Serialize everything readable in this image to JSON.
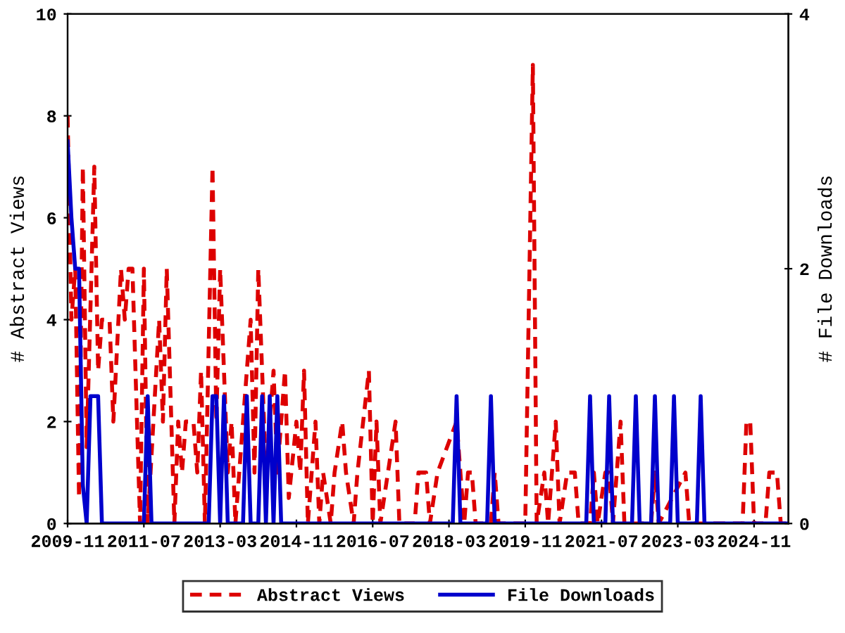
{
  "chart_data": {
    "type": "line",
    "ylabel": "# Abstract Views",
    "y2label": "# File Downloads",
    "xlim": [
      "2009-11",
      "2025-08"
    ],
    "xticks": [
      "2009-11",
      "2011-07",
      "2013-03",
      "2014-11",
      "2016-07",
      "2018-03",
      "2019-11",
      "2021-07",
      "2023-03",
      "2024-11"
    ],
    "ylim": [
      0,
      10
    ],
    "yticks": [
      0,
      2,
      4,
      6,
      8,
      10
    ],
    "y2lim": [
      0,
      4
    ],
    "y2ticks": [
      0,
      2,
      4
    ],
    "grid": false,
    "legend": "bottom",
    "marker": "none",
    "series": [
      {
        "name": "Abstract Views",
        "color": "#dd0000",
        "line_style": "dashed",
        "axis": "y",
        "x": [
          "2009-11",
          "2009-12",
          "2010-01",
          "2010-02",
          "2010-03",
          "2010-04",
          "2010-06",
          "2010-07",
          "2010-08",
          "2010-10",
          "2010-11",
          "2011-01",
          "2011-02",
          "2011-03",
          "2011-04",
          "2011-06",
          "2011-07",
          "2011-08",
          "2011-11",
          "2011-12",
          "2012-01",
          "2012-03",
          "2012-04",
          "2012-05",
          "2012-06",
          "2012-08",
          "2012-09",
          "2012-10",
          "2012-11",
          "2013-01",
          "2013-02",
          "2013-03",
          "2013-05",
          "2013-06",
          "2013-07",
          "2013-09",
          "2013-11",
          "2013-12",
          "2014-01",
          "2014-03",
          "2014-05",
          "2014-06",
          "2014-08",
          "2014-09",
          "2014-11",
          "2014-12",
          "2015-01",
          "2015-02",
          "2015-04",
          "2015-05",
          "2015-06",
          "2015-08",
          "2015-09",
          "2015-11",
          "2015-12",
          "2016-02",
          "2016-03",
          "2016-06",
          "2016-07",
          "2016-08",
          "2016-09",
          "2016-11",
          "2017-01",
          "2017-02",
          "2017-06",
          "2017-07",
          "2017-09",
          "2017-10",
          "2017-12",
          "2018-05",
          "2018-07",
          "2018-08",
          "2018-09",
          "2018-10",
          "2019-02",
          "2019-03",
          "2019-04",
          "2019-11",
          "2020-01",
          "2020-02",
          "2020-04",
          "2020-05",
          "2020-07",
          "2020-08",
          "2020-10",
          "2020-12",
          "2021-01",
          "2021-04",
          "2021-05",
          "2021-06",
          "2021-08",
          "2021-09",
          "2021-10",
          "2021-12",
          "2022-01",
          "2022-08",
          "2022-09",
          "2022-10",
          "2023-05",
          "2023-06",
          "2024-08",
          "2024-09",
          "2024-10",
          "2024-11",
          "2025-02",
          "2025-03",
          "2025-05",
          "2025-06",
          "2025-08"
        ],
        "values": [
          8,
          4,
          5,
          0.5,
          7,
          1.5,
          7,
          3,
          4,
          4,
          2,
          5,
          4,
          5,
          5,
          0,
          5,
          0,
          4,
          2,
          5,
          0,
          2,
          1,
          2,
          2,
          1,
          3,
          0,
          7,
          2,
          5,
          1,
          2,
          0,
          2,
          4,
          1,
          5,
          1,
          3,
          1,
          3,
          0.5,
          2,
          1,
          3,
          0,
          2,
          0,
          1,
          0,
          1,
          2,
          1,
          0,
          1,
          3,
          0,
          2,
          0,
          1,
          2,
          0,
          0,
          1,
          1,
          0,
          1,
          2,
          0,
          1,
          1,
          0,
          0,
          1,
          0,
          0,
          9,
          0,
          1,
          0,
          2,
          0,
          1,
          1,
          0,
          0,
          1,
          0,
          1,
          1,
          0,
          2,
          0,
          0,
          1,
          0,
          1,
          0,
          0,
          2,
          2,
          0,
          0,
          1,
          1,
          0,
          0
        ]
      },
      {
        "name": "File Downloads",
        "color": "#0000cc",
        "line_style": "solid",
        "axis": "y2",
        "x": [
          "2009-11",
          "2009-12",
          "2010-01",
          "2010-02",
          "2010-03",
          "2010-04",
          "2010-05",
          "2010-07",
          "2010-08",
          "2011-07",
          "2011-08",
          "2011-09",
          "2012-12",
          "2013-01",
          "2013-02",
          "2013-03",
          "2013-04",
          "2013-05",
          "2013-09",
          "2013-10",
          "2013-11",
          "2014-01",
          "2014-02",
          "2014-03",
          "2014-04",
          "2014-05",
          "2014-06",
          "2014-07",
          "2018-04",
          "2018-05",
          "2018-06",
          "2019-01",
          "2019-02",
          "2019-03",
          "2021-03",
          "2021-04",
          "2021-05",
          "2021-08",
          "2021-09",
          "2021-10",
          "2022-03",
          "2022-04",
          "2022-05",
          "2022-08",
          "2022-09",
          "2022-10",
          "2023-01",
          "2023-02",
          "2023-03",
          "2023-08",
          "2023-09",
          "2023-10",
          "2025-08"
        ],
        "values": [
          3,
          2.4,
          2,
          2,
          0.3,
          0,
          1,
          1,
          0,
          0,
          1,
          0,
          0,
          1,
          1,
          0,
          1,
          0,
          0,
          1,
          0,
          0,
          1,
          0,
          1,
          0,
          1,
          0,
          0,
          1,
          0,
          0,
          1,
          0,
          0,
          1,
          0,
          0,
          1,
          0,
          0,
          1,
          0,
          0,
          1,
          0,
          0,
          1,
          0,
          0,
          1,
          0,
          0
        ]
      }
    ]
  }
}
